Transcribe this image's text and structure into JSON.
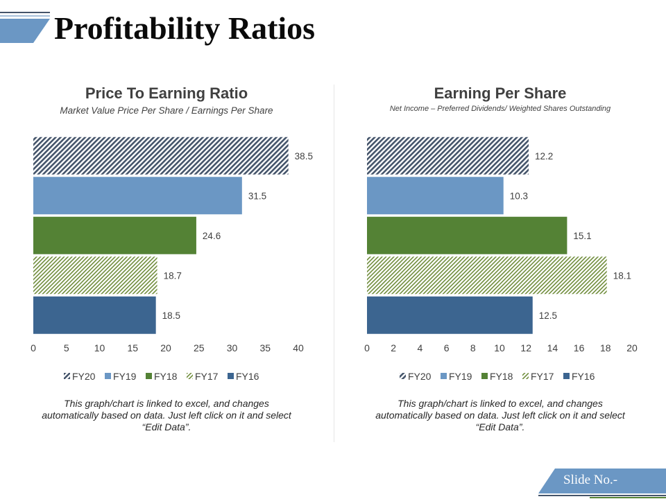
{
  "slide": {
    "title": "Profitability Ratios",
    "slide_no_label": "Slide No.-"
  },
  "colors": {
    "FY20": "#44546a",
    "FY19": "#6b97c4",
    "FY18": "#548235",
    "FY17": "#6f8c3b",
    "FY16": "#3c6590",
    "title_band": "#6b97c4",
    "footer_tab": "#6b97c4",
    "footer_line": "#548235"
  },
  "chart_data": [
    {
      "type": "bar",
      "orientation": "horizontal",
      "title": "Price To Earning Ratio",
      "subtitle": "Market Value Price Per Share / Earnings Per Share",
      "categories": [
        "FY20",
        "FY19",
        "FY18",
        "FY17",
        "FY16"
      ],
      "values": [
        38.5,
        31.5,
        24.6,
        18.7,
        18.5
      ],
      "xlim": [
        0,
        40
      ],
      "xticks": [
        0,
        5,
        10,
        15,
        20,
        25,
        30,
        35,
        40
      ],
      "legend": [
        "FY20",
        "FY19",
        "FY18",
        "FY17",
        "FY16"
      ],
      "legend_position": "bottom",
      "grid": false,
      "note": [
        "This graph/chart is linked to excel, and changes",
        "automatically based on data. Just left click on it and select",
        "“Edit Data”."
      ]
    },
    {
      "type": "bar",
      "orientation": "horizontal",
      "title": "Earning Per Share",
      "subtitle": "Net Income – Preferred Dividends/ Weighted Shares Outstanding",
      "categories": [
        "FY20",
        "FY19",
        "FY18",
        "FY17",
        "FY16"
      ],
      "values": [
        12.2,
        10.3,
        15.1,
        18.1,
        12.5
      ],
      "xlim": [
        0,
        20
      ],
      "xticks": [
        0,
        2,
        4,
        6,
        8,
        10,
        12,
        14,
        16,
        18,
        20
      ],
      "legend": [
        "FY20",
        "FY19",
        "FY18",
        "FY17",
        "FY16"
      ],
      "legend_position": "bottom",
      "grid": false,
      "note": [
        "This graph/chart is linked to excel, and changes",
        "automatically based on data. Just left click on it and select",
        "“Edit Data”."
      ]
    }
  ]
}
